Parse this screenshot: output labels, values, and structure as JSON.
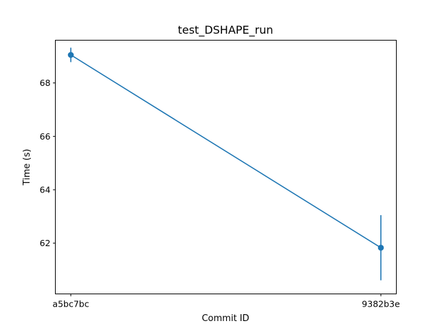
{
  "chart_data": {
    "type": "line",
    "title": "test_DSHAPE_run",
    "xlabel": "Commit ID",
    "ylabel": "Time (s)",
    "categories": [
      "a5bc7bc",
      "9382b3e"
    ],
    "series": [
      {
        "values": [
          69.05,
          61.83
        ],
        "errors": [
          0.27,
          1.22
        ],
        "color": "#1f77b4"
      }
    ],
    "ylim": [
      60.1,
      69.6
    ],
    "yticks": [
      62,
      64,
      66,
      68
    ],
    "grid": false
  }
}
